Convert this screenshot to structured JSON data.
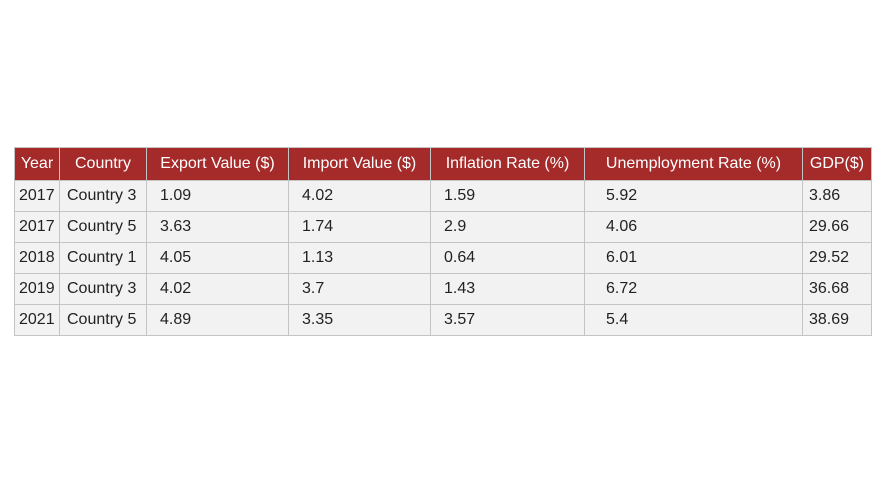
{
  "chart_data": {
    "type": "table",
    "columns": [
      "Year",
      "Country",
      "Export Value ($)",
      "Import Value ($)",
      "Inflation Rate (%)",
      "Unemployment Rate (%)",
      "GDP($)"
    ],
    "rows": [
      [
        "2017",
        "Country 3",
        "1.09",
        "4.02",
        "1.59",
        "5.92",
        "3.86"
      ],
      [
        "2017",
        "Country 5",
        "3.63",
        "1.74",
        "2.9",
        "4.06",
        "29.66"
      ],
      [
        "2018",
        "Country 1",
        "4.05",
        "1.13",
        "0.64",
        "6.01",
        "29.52"
      ],
      [
        "2019",
        "Country 3",
        "4.02",
        "3.7",
        "1.43",
        "6.72",
        "36.68"
      ],
      [
        "2021",
        "Country 5",
        "4.89",
        "3.35",
        "3.57",
        "5.4",
        "38.69"
      ]
    ],
    "header_color": "#a52a2a",
    "header_text_color": "#ffffff",
    "cell_color": "#f2f2f2",
    "border_color": "#c4c4c4"
  }
}
